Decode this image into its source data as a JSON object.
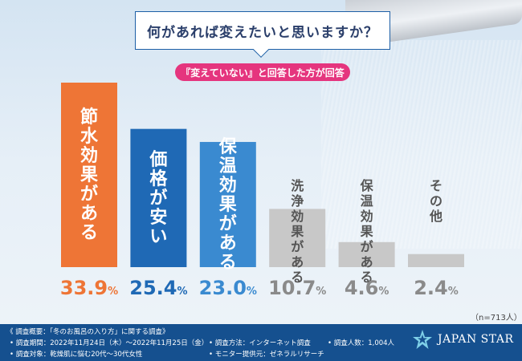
{
  "title": "何があれば変えたいと思いますか？",
  "subtitle": "『変えていない』と回答した方が回答",
  "sample": "（n=713人）",
  "colors": {
    "orange": "#ee7536",
    "blue": "#1f69b5",
    "lightblue": "#3a8ad0",
    "gray": "#c8c8c8",
    "pink": "#e5357e",
    "footer": "#15508f"
  },
  "chart_data": {
    "type": "bar",
    "categories": [
      "節水効果がある",
      "価格が安い",
      "保温効果がある",
      "洗浄効果がある",
      "保温効果がある",
      "その他"
    ],
    "values": [
      33.9,
      25.4,
      23.0,
      10.7,
      4.6,
      2.4
    ],
    "value_labels": [
      "33.9%",
      "25.4%",
      "23.0%",
      "10.7%",
      "4.6%",
      "2.4%"
    ],
    "label_inside": [
      true,
      true,
      true,
      false,
      false,
      false
    ],
    "bar_colors": [
      "#ee7536",
      "#1f69b5",
      "#3a8ad0",
      "#c8c8c8",
      "#c8c8c8",
      "#c8c8c8"
    ],
    "ylim": [
      0,
      33.9
    ],
    "title": "何があれば変えたいと思いますか？"
  },
  "footer": {
    "overview": "《 調査概要：「冬のお風呂の入り方」に関する調査》",
    "period": "• 調査期間：2022年11月24日（木）〜2022年11月25日（金）",
    "method": "• 調査方法：インターネット調査",
    "count": "• 調査人数：1,004人",
    "target": "• 調査対象：乾燥肌に悩む20代〜30代女性",
    "provider": "• モニター提供元：ゼネラルリサーチ",
    "logo": "JAPAN STAR"
  }
}
